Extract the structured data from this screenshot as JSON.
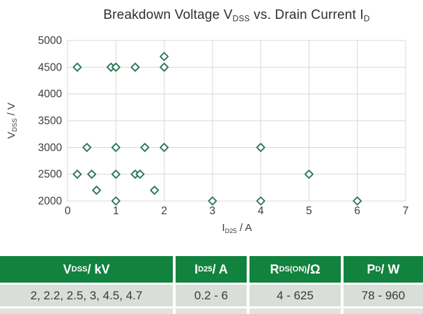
{
  "title_parts": [
    {
      "t": "Breakdown Voltage V"
    },
    {
      "s": "DSS"
    },
    {
      "t": " vs. Drain Current I"
    },
    {
      "s": "D"
    }
  ],
  "chart_data": {
    "type": "scatter",
    "title": "Breakdown Voltage V_DSS vs. Drain Current I_D",
    "xlabel": "I_D25 / A",
    "ylabel": "V_DSS / V",
    "xlim": [
      0,
      7
    ],
    "ylim": [
      2000,
      5000
    ],
    "xticks": [
      0,
      1,
      2,
      3,
      4,
      5,
      6,
      7
    ],
    "yticks": [
      2000,
      2500,
      3000,
      3500,
      4000,
      4500,
      5000
    ],
    "grid": true,
    "legend": "none",
    "marker": {
      "shape": "open-diamond",
      "stroke": "#2b7752",
      "fill": "#ffffff"
    },
    "points": [
      [
        0.2,
        4500
      ],
      [
        0.9,
        4500
      ],
      [
        1.0,
        4500
      ],
      [
        1.4,
        4500
      ],
      [
        2.0,
        4500
      ],
      [
        2.0,
        4700
      ],
      [
        0.4,
        3000
      ],
      [
        1.0,
        3000
      ],
      [
        1.6,
        3000
      ],
      [
        2.0,
        3000
      ],
      [
        4.0,
        3000
      ],
      [
        0.2,
        2500
      ],
      [
        0.5,
        2500
      ],
      [
        1.0,
        2500
      ],
      [
        1.4,
        2500
      ],
      [
        1.5,
        2500
      ],
      [
        5.0,
        2500
      ],
      [
        0.6,
        2200
      ],
      [
        1.8,
        2200
      ],
      [
        1.0,
        2000
      ],
      [
        3.0,
        2000
      ],
      [
        4.0,
        2000
      ],
      [
        6.0,
        2000
      ]
    ]
  },
  "labels": {
    "xlabel_parts": [
      {
        "t": "I"
      },
      {
        "s": "D25"
      },
      {
        "t": " / A"
      }
    ],
    "ylabel_parts": [
      {
        "t": "V"
      },
      {
        "s": "DSS"
      },
      {
        "t": " / V"
      }
    ]
  },
  "colors": {
    "header_green": "#12823f",
    "row_bg": "#d9ded9",
    "stub_row_bg": "#dfe4dd",
    "grid_line": "#d8d8d8",
    "tick_text": "#3c3c3c",
    "marker_stroke": "#2b7752"
  },
  "table": {
    "columns": [
      {
        "header_parts": [
          {
            "t": "V"
          },
          {
            "s": "DSS"
          },
          {
            "t": " / kV"
          }
        ],
        "value": "2, 2.2, 2.5, 3, 4.5, 4.7"
      },
      {
        "header_parts": [
          {
            "t": "I"
          },
          {
            "s": "D25"
          },
          {
            "t": " / A"
          }
        ],
        "value": "0.2 - 6"
      },
      {
        "header_parts": [
          {
            "t": "R"
          },
          {
            "s": "DS(ON)"
          },
          {
            "t": " /Ω"
          }
        ],
        "value": "4 - 625"
      },
      {
        "header_parts": [
          {
            "t": "P"
          },
          {
            "s": "D"
          },
          {
            "t": " / W"
          }
        ],
        "value": "78 - 960"
      }
    ]
  }
}
